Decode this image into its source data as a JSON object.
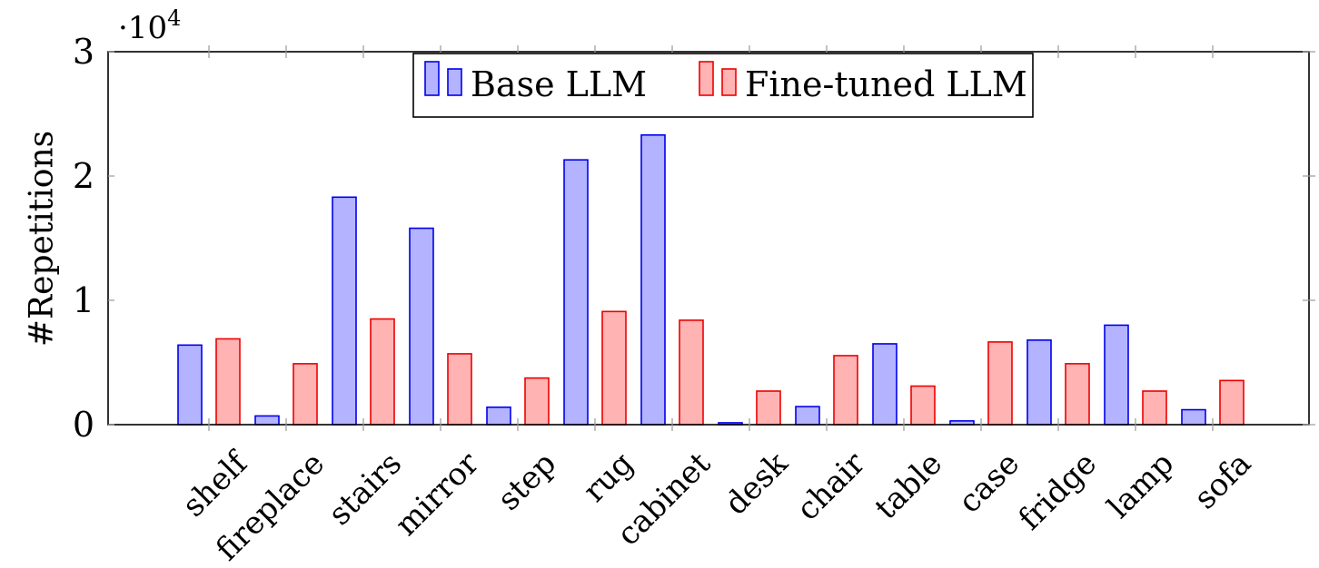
{
  "chart_data": {
    "type": "bar",
    "title": "",
    "xlabel": "",
    "ylabel": "#Repetitions",
    "y_multiplier_label": "·10",
    "y_multiplier_exponent": "4",
    "ylim": [
      0,
      30000
    ],
    "yticks": [
      0,
      10000,
      20000,
      30000
    ],
    "ytick_labels": [
      "0",
      "1",
      "2",
      "3"
    ],
    "grid": false,
    "legend_position": "top-center",
    "categories": [
      "shelf",
      "fireplace",
      "stairs",
      "mirror",
      "step",
      "rug",
      "cabinet",
      "desk",
      "chair",
      "table",
      "case",
      "fridge",
      "lamp",
      "sofa"
    ],
    "series": [
      {
        "name": "Base LLM",
        "color_fill": "#b3b3ff",
        "color_stroke": "#0000ee",
        "values": [
          6400,
          700,
          18300,
          15800,
          1400,
          21300,
          23300,
          150,
          1450,
          6500,
          300,
          6800,
          8000,
          1200
        ]
      },
      {
        "name": "Fine-tuned LLM",
        "color_fill": "#ffb3b3",
        "color_stroke": "#ee0000",
        "values": [
          6900,
          4900,
          8500,
          5700,
          3750,
          9100,
          8400,
          2700,
          5550,
          3100,
          6650,
          4900,
          2700,
          3550
        ]
      }
    ]
  }
}
